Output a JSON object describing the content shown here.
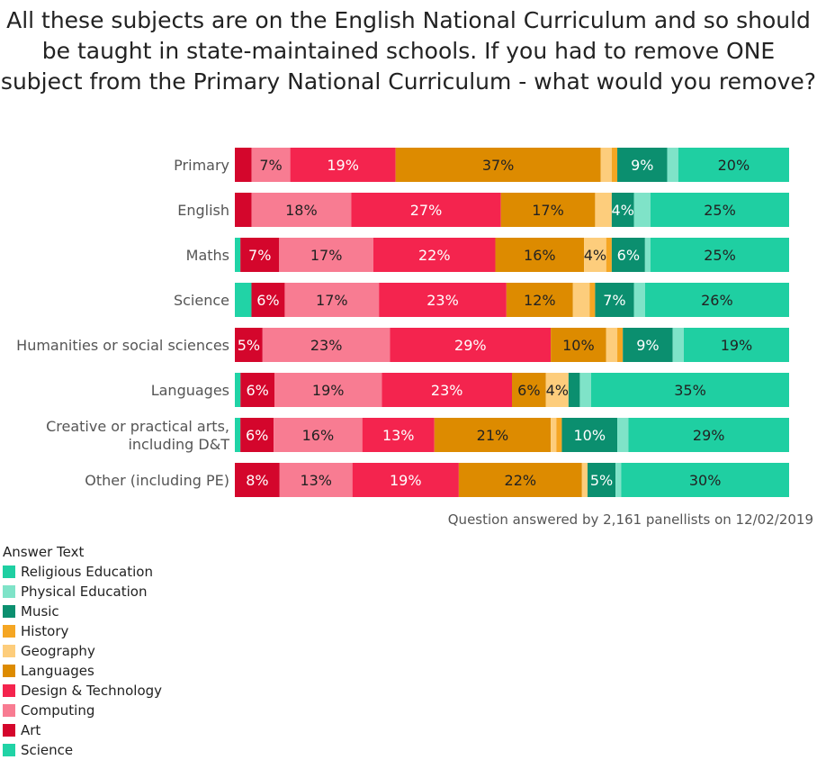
{
  "title": "All these subjects are on the English National Curriculum and so should be taught in state-maintained schools. If you had to remove ONE subject from the Primary National Curriculum - what would you remove?",
  "caption": "Question answered by 2,161 panellists on 12/02/2019",
  "legend_title": "Answer Text",
  "legend_items": [
    {
      "label": "Religious Education",
      "color": "#1fcfa2"
    },
    {
      "label": "Physical Education",
      "color": "#7fe3c8"
    },
    {
      "label": "Music",
      "color": "#0b8f6f"
    },
    {
      "label": "History",
      "color": "#f5a623"
    },
    {
      "label": "Geography",
      "color": "#fdcd7c"
    },
    {
      "label": "Languages",
      "color": "#dd8b00"
    },
    {
      "label": "Design & Technology",
      "color": "#f4244e"
    },
    {
      "label": "Computing",
      "color": "#f87c92"
    },
    {
      "label": "Art",
      "color": "#d4062c"
    },
    {
      "label": "Science",
      "color": "#21d3a6"
    }
  ],
  "chart_data": {
    "type": "bar",
    "orientation": "horizontal",
    "stacked": "100%",
    "categories": [
      "Primary",
      "English",
      "Maths",
      "Science",
      "Humanities or social sciences",
      "Languages",
      "Creative or practical arts, including D&T",
      "Other (including PE)"
    ],
    "series": [
      {
        "name": "Science",
        "color": "#21d3a6",
        "values": [
          0,
          0,
          1,
          3,
          0,
          1,
          1,
          0
        ]
      },
      {
        "name": "Art",
        "color": "#d4062c",
        "values": [
          3,
          3,
          7,
          6,
          5,
          6,
          6,
          8
        ]
      },
      {
        "name": "Computing",
        "color": "#f87c92",
        "values": [
          7,
          18,
          17,
          17,
          23,
          19,
          16,
          13
        ]
      },
      {
        "name": "Design & Technology",
        "color": "#f4244e",
        "values": [
          19,
          27,
          22,
          23,
          29,
          23,
          13,
          19
        ]
      },
      {
        "name": "Languages",
        "color": "#dd8b00",
        "values": [
          37,
          17,
          16,
          12,
          10,
          6,
          21,
          22
        ]
      },
      {
        "name": "Geography",
        "color": "#fdcd7c",
        "values": [
          2,
          3,
          4,
          3,
          2,
          4,
          1,
          1
        ]
      },
      {
        "name": "History",
        "color": "#f5a623",
        "values": [
          1,
          0,
          1,
          1,
          1,
          0,
          1,
          0
        ]
      },
      {
        "name": "Music",
        "color": "#0b8f6f",
        "values": [
          9,
          4,
          6,
          7,
          9,
          2,
          10,
          5
        ]
      },
      {
        "name": "Physical Education",
        "color": "#7fe3c8",
        "values": [
          2,
          3,
          1,
          2,
          2,
          2,
          2,
          1
        ]
      },
      {
        "name": "Religious Education",
        "color": "#1fcfa2",
        "values": [
          20,
          25,
          25,
          26,
          19,
          35,
          29,
          30
        ]
      }
    ],
    "label_min": 4,
    "xlim": [
      0,
      100
    ],
    "grid": false,
    "legend": "bottom-left"
  }
}
